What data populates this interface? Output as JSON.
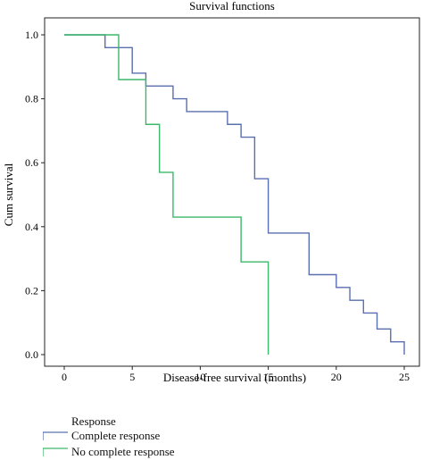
{
  "chart_data": {
    "type": "line",
    "step": true,
    "title": "Survival functions",
    "xlabel": "Disease-free survival (months)",
    "ylabel": "Cum survival",
    "xlim": [
      0,
      25
    ],
    "ylim": [
      0,
      1.0
    ],
    "xticks": [
      "0",
      "5",
      "10",
      "15",
      "20",
      "25"
    ],
    "yticks": [
      "0.0",
      "0.2",
      "0.4",
      "0.6",
      "0.8",
      "1.0"
    ],
    "legend_title": "Response",
    "legend_position": "bottom-left",
    "series": [
      {
        "name": "Complete response",
        "color": "#5a6fb0",
        "x": [
          0,
          3,
          5,
          5.2,
          6,
          8,
          9,
          12,
          13,
          14,
          15,
          18,
          20,
          21,
          22,
          23,
          24,
          25
        ],
        "y": [
          1.0,
          0.96,
          0.88,
          0.88,
          0.84,
          0.8,
          0.76,
          0.72,
          0.68,
          0.55,
          0.38,
          0.25,
          0.21,
          0.17,
          0.13,
          0.08,
          0.04,
          0.0
        ]
      },
      {
        "name": "No complete response",
        "color": "#3db86a",
        "x": [
          0,
          4,
          6,
          7,
          8,
          13,
          15
        ],
        "y": [
          1.0,
          0.86,
          0.72,
          0.57,
          0.43,
          0.29,
          0.0
        ]
      }
    ]
  }
}
